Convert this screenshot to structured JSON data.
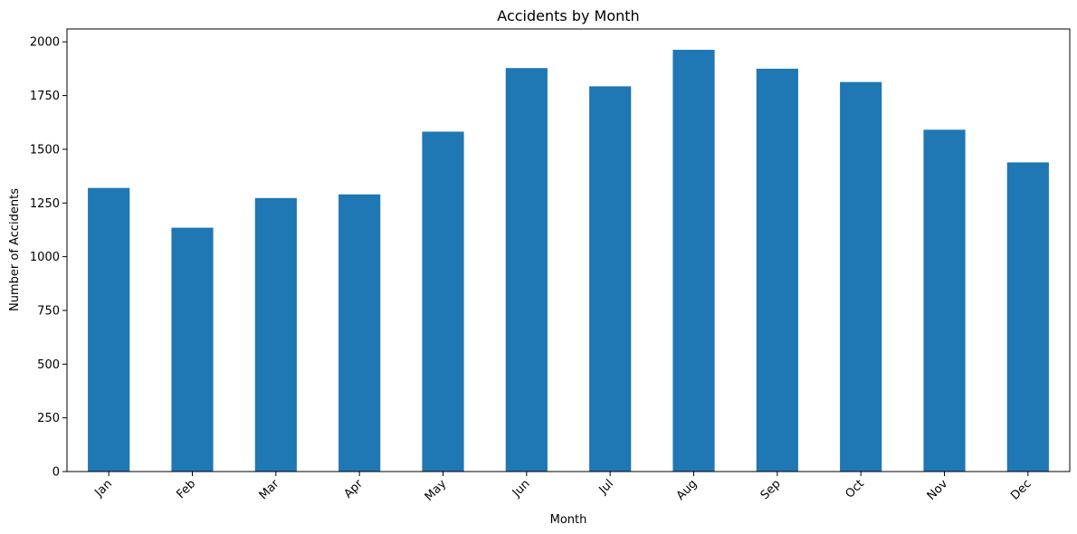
{
  "chart_data": {
    "type": "bar",
    "title": "Accidents by Month",
    "xlabel": "Month",
    "ylabel": "Number of Accidents",
    "categories": [
      "Jan",
      "Feb",
      "Mar",
      "Apr",
      "May",
      "Jun",
      "Jul",
      "Aug",
      "Sep",
      "Oct",
      "Nov",
      "Dec"
    ],
    "values": [
      1320,
      1135,
      1273,
      1290,
      1582,
      1878,
      1793,
      1963,
      1875,
      1813,
      1591,
      1439
    ],
    "yticks": [
      0,
      250,
      500,
      750,
      1000,
      1250,
      1500,
      1750,
      2000
    ],
    "ylim": [
      0,
      2060
    ],
    "bar_color": "#1f77b4",
    "grid": false,
    "legend": "none"
  }
}
